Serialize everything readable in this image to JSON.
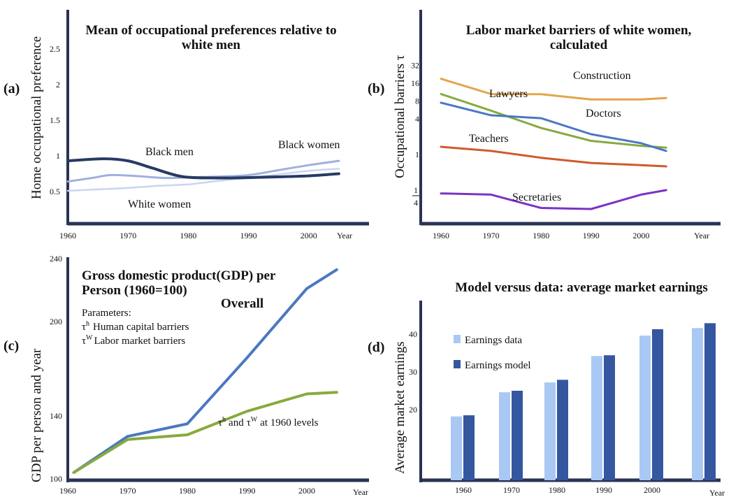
{
  "colors": {
    "axis": "#2a3354",
    "black_men": "#273a63",
    "black_women": "#9fb0df",
    "white_women": "#c9d5f1",
    "construction": "#e3a54b",
    "lawyers": "#86ab3e",
    "doctors": "#4a78c2",
    "teachers": "#cf5a2c",
    "secretaries": "#7b33c4",
    "gdp_overall": "#4a78c2",
    "gdp_1960": "#86ab3e",
    "bar_data": "#a9c8f3",
    "bar_model": "#34579f"
  },
  "chart_data": [
    {
      "panel": "(a)",
      "type": "line",
      "title_lines": [
        "Mean of occupational preferences relative to",
        "white men"
      ],
      "ylabel": "Home occupational preference",
      "xlabel": "Year",
      "xticks": [
        "1960",
        "1970",
        "1980",
        "1990",
        "2000"
      ],
      "yticks": [
        "0.5",
        "1",
        "1.5",
        "2",
        "2.5"
      ],
      "xlim": [
        1960,
        2005
      ],
      "ylim": [
        0.0,
        2.8
      ],
      "series": [
        {
          "name": "Black men",
          "x": [
            1960,
            1966,
            1970,
            1974,
            1979,
            1985,
            1992,
            2000,
            2005
          ],
          "y": [
            0.93,
            0.96,
            0.93,
            0.83,
            0.71,
            0.69,
            0.7,
            0.72,
            0.75
          ]
        },
        {
          "name": "Black women",
          "x": [
            1960,
            1964,
            1967,
            1971,
            1976,
            1980,
            1985,
            1990,
            1995,
            2000,
            2005
          ],
          "y": [
            0.64,
            0.69,
            0.73,
            0.72,
            0.69,
            0.7,
            0.71,
            0.73,
            0.8,
            0.87,
            0.93
          ]
        },
        {
          "name": "White women",
          "x": [
            1960,
            1965,
            1970,
            1975,
            1980,
            1985,
            1990,
            1995,
            2000,
            2005
          ],
          "y": [
            0.51,
            0.53,
            0.55,
            0.58,
            0.6,
            0.65,
            0.69,
            0.74,
            0.79,
            0.82
          ]
        }
      ]
    },
    {
      "panel": "(b)",
      "type": "line",
      "title_lines": [
        "Labor market barriers of white women,",
        "calculated"
      ],
      "ylabel": "Occupational barriers τ",
      "xlabel": "Year",
      "xticks": [
        "1960",
        "1970",
        "1980",
        "1990",
        "2000"
      ],
      "yticks": [
        "1",
        "4",
        "8",
        "16",
        "32"
      ],
      "ytick_frac": {
        "num": "1",
        "den": "4"
      },
      "yscale": "log",
      "xlim": [
        1960,
        2005
      ],
      "series": [
        {
          "name": "Construction",
          "x": [
            1960,
            1970,
            1980,
            1990,
            2000,
            2005
          ],
          "y": [
            19,
            10.5,
            10.4,
            8.5,
            8.5,
            9.0
          ]
        },
        {
          "name": "Lawyers",
          "x": [
            1960,
            1970,
            1980,
            1990,
            2000,
            2005
          ],
          "y": [
            10.5,
            5.5,
            2.8,
            1.7,
            1.4,
            1.3
          ]
        },
        {
          "name": "Doctors",
          "x": [
            1960,
            1970,
            1980,
            1990,
            2000,
            2005
          ],
          "y": [
            7.5,
            4.6,
            4.1,
            2.2,
            1.55,
            1.15
          ]
        },
        {
          "name": "Teachers",
          "x": [
            1960,
            1970,
            1980,
            1990,
            2000,
            2005
          ],
          "y": [
            1.35,
            1.15,
            0.88,
            0.72,
            0.66,
            0.63
          ]
        },
        {
          "name": "Secretaries",
          "x": [
            1960,
            1970,
            1980,
            1990,
            2000,
            2005
          ],
          "y": [
            0.22,
            0.21,
            0.125,
            0.12,
            0.21,
            0.25
          ]
        }
      ]
    },
    {
      "panel": "(c)",
      "type": "line",
      "title_lines": [
        "Gross domestic product(GDP) per",
        "Person (1960=100)"
      ],
      "ylabel": "GDP per person and year",
      "xlabel": "Year",
      "xticks": [
        "1960",
        "1970",
        "1980",
        "1990",
        "2000"
      ],
      "yticks": [
        "100",
        "140",
        "200",
        "240"
      ],
      "xlim": [
        1960,
        2005
      ],
      "ylim": [
        100,
        240
      ],
      "parameters": {
        "heading": "Parameters:",
        "items": [
          {
            "symbol": "τ",
            "sup": "h",
            "text": "Human capital barriers"
          },
          {
            "symbol": "τ",
            "sup": "W",
            "text": "Labor market barriers"
          }
        ]
      },
      "series": [
        {
          "name": "Overall",
          "x": [
            1961,
            1970,
            1980,
            1990,
            2000,
            2005
          ],
          "y": [
            104,
            127,
            135,
            177,
            221,
            233
          ]
        },
        {
          "name": "τh and τW at 1960 levels",
          "x": [
            1961,
            1970,
            1980,
            1990,
            2000,
            2005
          ],
          "y": [
            104,
            125,
            128,
            143,
            154,
            155
          ]
        }
      ],
      "annotation": {
        "sym1": "τ",
        "sup1": "h",
        "mid": "and",
        "sym2": "τ",
        "sup2": "W",
        "rest": "at 1960 levels"
      }
    },
    {
      "panel": "(d)",
      "type": "bar",
      "title": "Model versus data: average market earnings",
      "ylabel": "Average market earnings",
      "xlabel": "Year",
      "categories": [
        "1960",
        "1970",
        "1980",
        "1990",
        "2000",
        "Year"
      ],
      "yticks": [
        "20",
        "30",
        "40"
      ],
      "ylim": [
        7,
        46
      ],
      "series": [
        {
          "name": "Earnings data",
          "values": [
            18.2,
            24.6,
            27.2,
            34.2,
            39.6,
            41.6
          ]
        },
        {
          "name": "Earnings model",
          "values": [
            18.5,
            25.0,
            27.9,
            34.4,
            41.3,
            42.9
          ]
        }
      ]
    }
  ]
}
